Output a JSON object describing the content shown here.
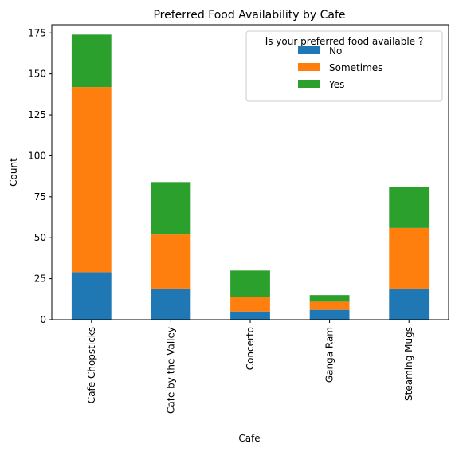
{
  "chart_data": {
    "type": "bar",
    "stacked": true,
    "title": "Preferred Food Availability by Cafe",
    "xlabel": "Cafe",
    "ylabel": "Count",
    "ylim": [
      0,
      180
    ],
    "yticks": [
      0,
      25,
      50,
      75,
      100,
      125,
      150,
      175
    ],
    "categories": [
      "Cafe Chopsticks",
      "Cafe by the Valley",
      "Concerto",
      "Ganga Ram",
      "Steaming Mugs"
    ],
    "series": [
      {
        "name": "No",
        "color": "#1f77b4",
        "values": [
          29,
          19,
          5,
          6,
          19
        ]
      },
      {
        "name": "Sometimes",
        "color": "#ff7f0e",
        "values": [
          113,
          33,
          9,
          5,
          37
        ]
      },
      {
        "name": "Yes",
        "color": "#2ca02c",
        "values": [
          32,
          32,
          16,
          4,
          25
        ]
      }
    ],
    "legend": {
      "title": "Is your preferred food available ?",
      "position": "top-right"
    },
    "grid": false
  }
}
